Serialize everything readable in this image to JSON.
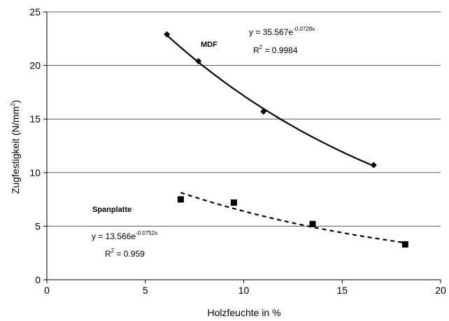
{
  "chart_data": {
    "type": "scatter",
    "xlabel": "Holzfeuchte in %",
    "ylabel": "Zugfestigkeit (N/mm",
    "ylabel_sup": "2",
    "ylabel_close": ")",
    "xlim": [
      0,
      20
    ],
    "ylim": [
      0,
      25
    ],
    "x_ticks": [
      "0",
      "5",
      "10",
      "15",
      "20"
    ],
    "y_ticks": [
      "0",
      "5",
      "10",
      "15",
      "20",
      "25"
    ],
    "grid": "horizontal",
    "series": [
      {
        "name": "MDF",
        "marker": "diamond",
        "points": [
          [
            6.1,
            22.9
          ],
          [
            7.7,
            20.4
          ],
          [
            11.0,
            15.7
          ],
          [
            16.6,
            10.7
          ]
        ],
        "trend": {
          "type": "exponential",
          "a": 35.567,
          "b": -0.0728,
          "x_range": [
            6.1,
            16.6
          ],
          "style": "solid"
        },
        "equation_main": "y = 35.567e",
        "equation_exp": "-0.0728x",
        "r2_main": "R",
        "r2_sup": "2",
        "r2_value": " = 0.9984"
      },
      {
        "name": "Spanplatte",
        "marker": "square",
        "points": [
          [
            6.8,
            7.5
          ],
          [
            9.5,
            7.2
          ],
          [
            13.5,
            5.2
          ],
          [
            18.2,
            3.3
          ]
        ],
        "trend": {
          "type": "exponential",
          "a": 13.566,
          "b": -0.0752,
          "x_range": [
            6.8,
            18.2
          ],
          "style": "dashed"
        },
        "equation_main": "y = 13.566e",
        "equation_exp": "-0.0752x",
        "r2_main": "R",
        "r2_sup": "2",
        "r2_value": " = 0.959"
      }
    ]
  }
}
